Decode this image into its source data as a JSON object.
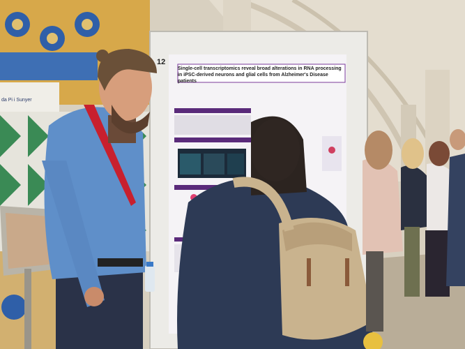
{
  "board_number": "12",
  "poster_title": "Single-cell transcriptomics reveal broad alterations in RNA processing in iPSC-derived neurons and glial cells from Alzheimer's Disease patients",
  "wall_sign": "da Pi i Sunyer",
  "colors": {
    "vault": "#e6e0d2",
    "board_frame": "#ecebe7",
    "poster": "#f5f3f6",
    "poster_accent": "#5a2a7a",
    "backpack": "#c9b38e",
    "shirt": "#5f8fc9"
  }
}
